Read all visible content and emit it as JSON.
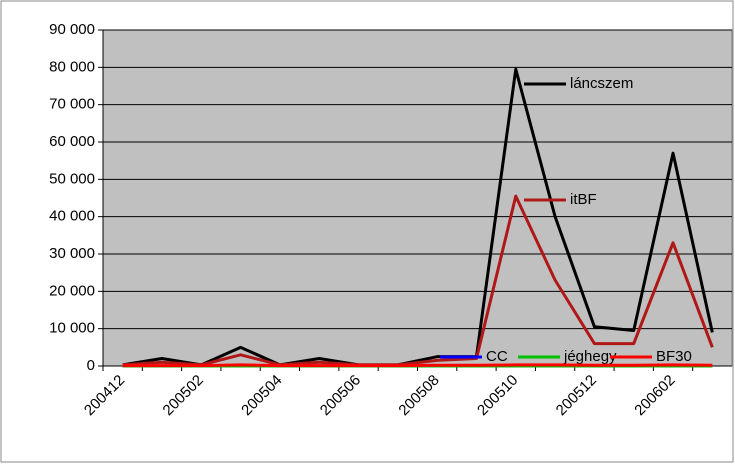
{
  "chart_data": {
    "type": "line",
    "categories": [
      "200412",
      null,
      "200502",
      null,
      "200504",
      null,
      "200506",
      null,
      "200508",
      null,
      "200510",
      null,
      "200512",
      null,
      "200602",
      null
    ],
    "series": [
      {
        "name": "láncszem",
        "color": "#000000",
        "values": [
          300,
          2000,
          300,
          5000,
          300,
          2000,
          300,
          300,
          2500,
          2500,
          79500,
          40000,
          10500,
          9500,
          57000,
          9000
        ]
      },
      {
        "name": "itBF",
        "color": "#b01818",
        "values": [
          300,
          1000,
          300,
          3000,
          300,
          1000,
          300,
          300,
          1500,
          2000,
          45500,
          23000,
          6000,
          6000,
          33000,
          5000
        ]
      },
      {
        "name": "CC",
        "color": "#0000ff",
        "values": [
          0,
          0,
          0,
          200,
          0,
          0,
          0,
          0,
          0,
          0,
          0,
          0,
          0,
          0,
          0,
          0
        ]
      },
      {
        "name": "jéghegy",
        "color": "#00c000",
        "values": [
          0,
          0,
          0,
          0,
          0,
          0,
          0,
          0,
          0,
          0,
          0,
          0,
          0,
          0,
          0,
          0
        ]
      },
      {
        "name": "BF30",
        "color": "#ff0000",
        "values": [
          100,
          100,
          100,
          300,
          100,
          100,
          100,
          100,
          200,
          200,
          300,
          300,
          200,
          200,
          300,
          200
        ]
      }
    ],
    "ylim": [
      0,
      90000
    ],
    "yticks": [
      {
        "value": 0,
        "label": "0"
      },
      {
        "value": 10000,
        "label": "10 000"
      },
      {
        "value": 20000,
        "label": "20 000"
      },
      {
        "value": 30000,
        "label": "30 000"
      },
      {
        "value": 40000,
        "label": "40 000"
      },
      {
        "value": 50000,
        "label": "50 000"
      },
      {
        "value": 60000,
        "label": "60 000"
      },
      {
        "value": 70000,
        "label": "70 000"
      },
      {
        "value": 80000,
        "label": "80 000"
      },
      {
        "value": 90000,
        "label": "90 000"
      }
    ],
    "grid": true
  }
}
